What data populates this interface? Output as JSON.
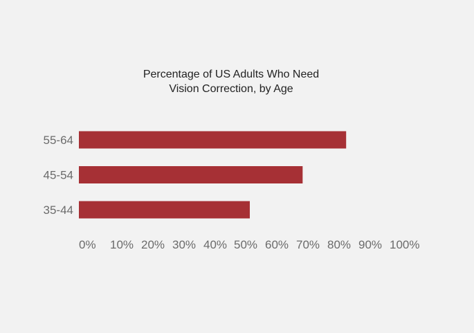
{
  "chart_data": {
    "type": "bar",
    "orientation": "horizontal",
    "title": "Percentage of US Adults Who Need\nVision Correction, by Age",
    "title_lines": [
      "Percentage of US Adults Who Need",
      "Vision Correction, by Age"
    ],
    "categories": [
      "55-64",
      "45-54",
      "35-44"
    ],
    "values": [
      86,
      72,
      55
    ],
    "xlim": [
      0,
      110
    ],
    "x_ticks": [
      "0%",
      "10%",
      "20%",
      "30%",
      "40%",
      "50%",
      "60%",
      "70%",
      "80%",
      "90%",
      "100%"
    ],
    "grid": false,
    "legend": "none",
    "bar_color": "#a63035",
    "background": "#f2f2f2"
  }
}
